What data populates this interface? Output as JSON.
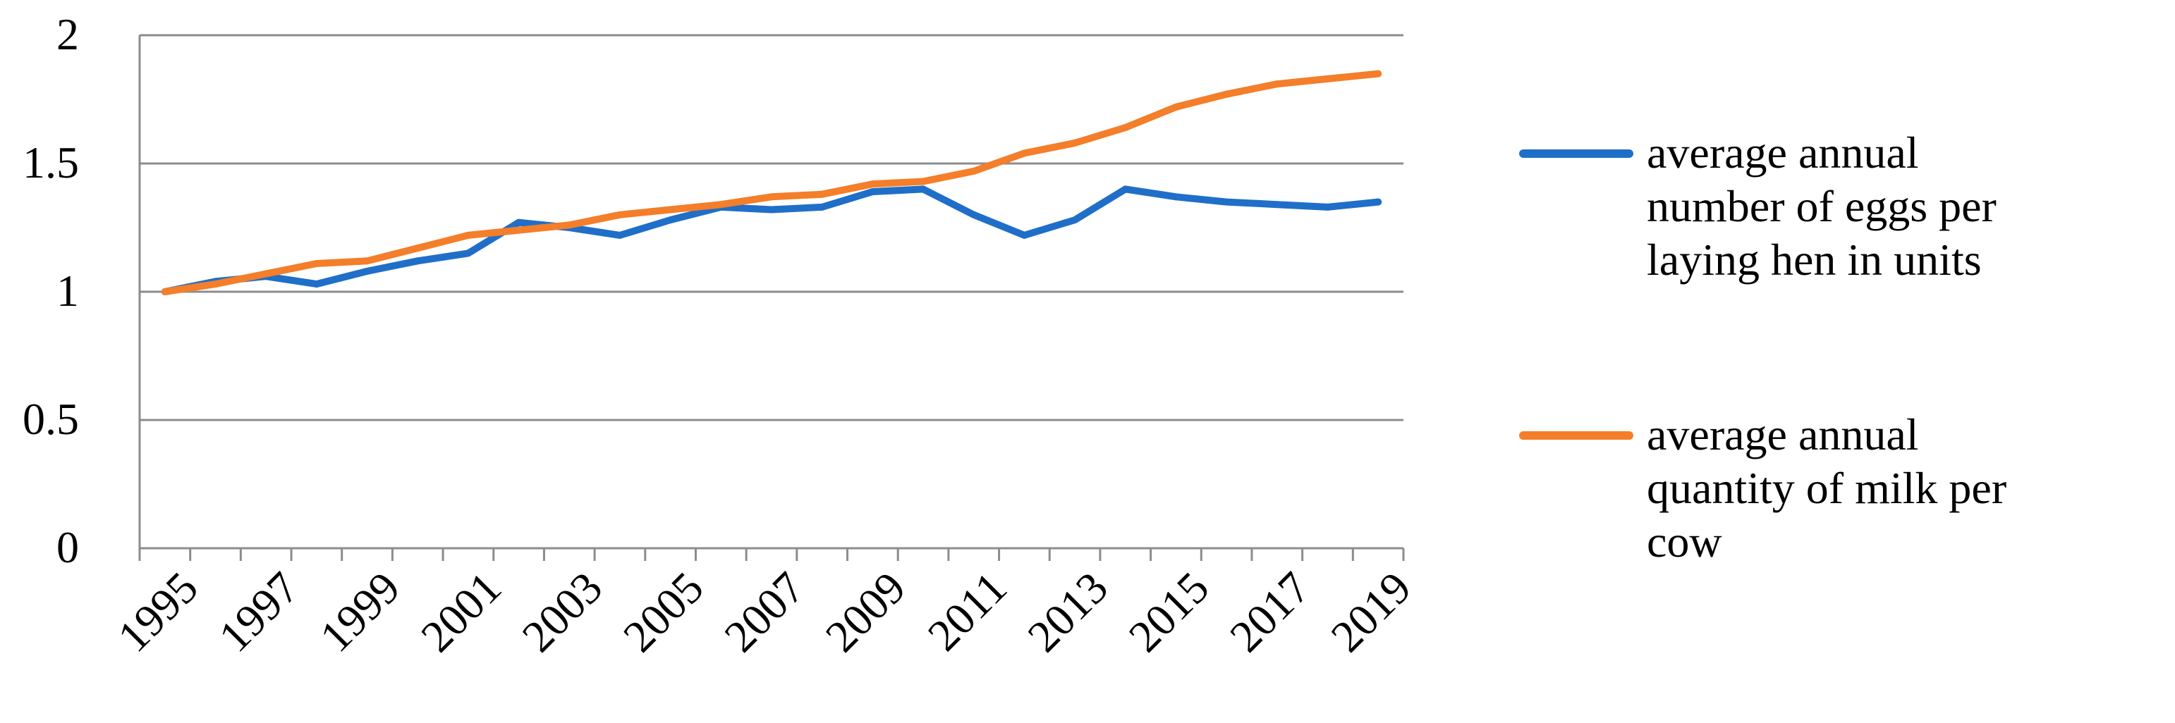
{
  "chart_data": {
    "type": "line",
    "title": "",
    "xlabel": "",
    "ylabel": "",
    "ylim": [
      0,
      2
    ],
    "yticks": [
      "0",
      "0.5",
      "1",
      "1.5",
      "2"
    ],
    "x": [
      1995,
      1996,
      1997,
      1998,
      1999,
      2000,
      2001,
      2002,
      2003,
      2004,
      2005,
      2006,
      2007,
      2008,
      2009,
      2010,
      2011,
      2012,
      2013,
      2014,
      2015,
      2016,
      2017,
      2018,
      2019
    ],
    "xtick_labels": [
      "1995",
      "1997",
      "1999",
      "2001",
      "2003",
      "2005",
      "2007",
      "2009",
      "2011",
      "2013",
      "2015",
      "2017",
      "2019"
    ],
    "grid": true,
    "legend_position": "right",
    "series": [
      {
        "name": "average annual number of eggs per laying hen in units",
        "legend_lines": [
          "average annual",
          "number of eggs per",
          "laying hen in units"
        ],
        "color": "#1F6FC8",
        "values": [
          1.0,
          1.04,
          1.06,
          1.03,
          1.08,
          1.12,
          1.15,
          1.27,
          1.25,
          1.22,
          1.28,
          1.33,
          1.32,
          1.33,
          1.39,
          1.4,
          1.3,
          1.22,
          1.28,
          1.4,
          1.37,
          1.35,
          1.34,
          1.33,
          1.35
        ]
      },
      {
        "name": "average annual quantity of milk per cow",
        "legend_lines": [
          "average annual",
          "quantity of milk per",
          "cow"
        ],
        "color": "#F47E2A",
        "values": [
          1.0,
          1.03,
          1.07,
          1.11,
          1.12,
          1.17,
          1.22,
          1.24,
          1.26,
          1.3,
          1.32,
          1.34,
          1.37,
          1.38,
          1.42,
          1.43,
          1.47,
          1.54,
          1.58,
          1.64,
          1.72,
          1.77,
          1.81,
          1.83,
          1.85
        ]
      }
    ]
  }
}
